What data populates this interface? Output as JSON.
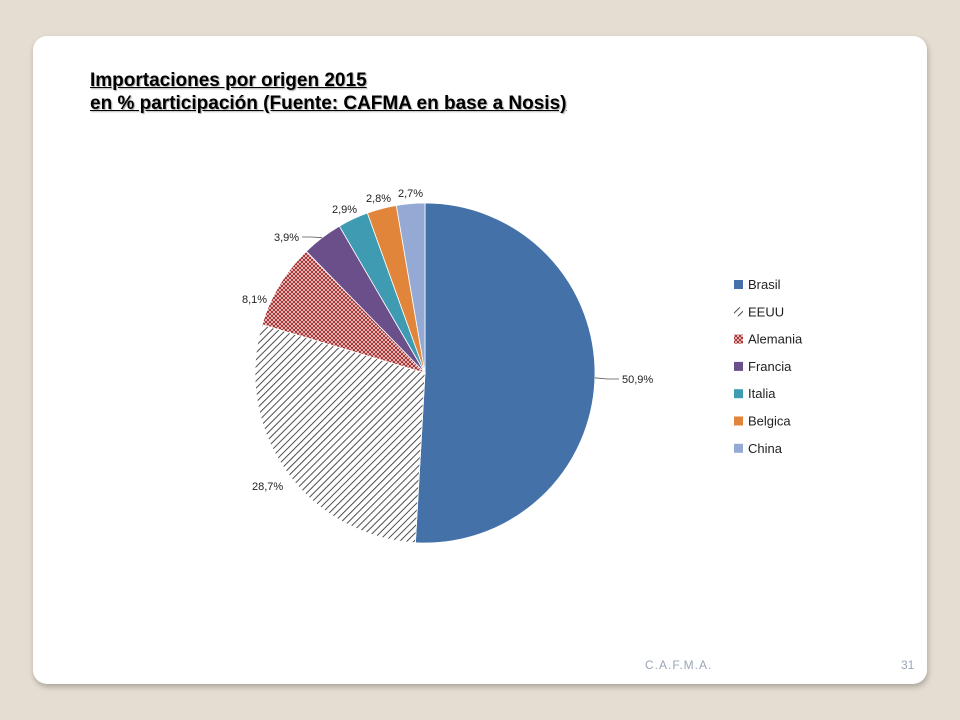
{
  "slide": {
    "title_line1": "Importaciones por origen 2015",
    "title_line2": "en % participación (Fuente: CAFMA en base a Nosis)",
    "footer_org": "C.A.F.M.A.",
    "page_number": "31"
  },
  "chart_data": {
    "type": "pie",
    "title": "",
    "categories": [
      "Brasil",
      "EEUU",
      "Alemania",
      "Francia",
      "Italia",
      "Belgica",
      "China"
    ],
    "values": [
      50.9,
      28.7,
      8.1,
      3.9,
      2.9,
      2.8,
      2.7
    ],
    "labels": [
      "50,9%",
      "28,7%",
      "8,1%",
      "3,9%",
      "2,9%",
      "2,8%",
      "2,7%"
    ],
    "fills": [
      "solid",
      "diagonal-hatch",
      "crosshatch",
      "solid",
      "solid",
      "solid",
      "solid"
    ],
    "colors": [
      "#4472a8",
      "#3a3a3a",
      "#a83232",
      "#6b4f8a",
      "#3e9bb2",
      "#e0853a",
      "#94a9d3"
    ],
    "legend_position": "right"
  }
}
